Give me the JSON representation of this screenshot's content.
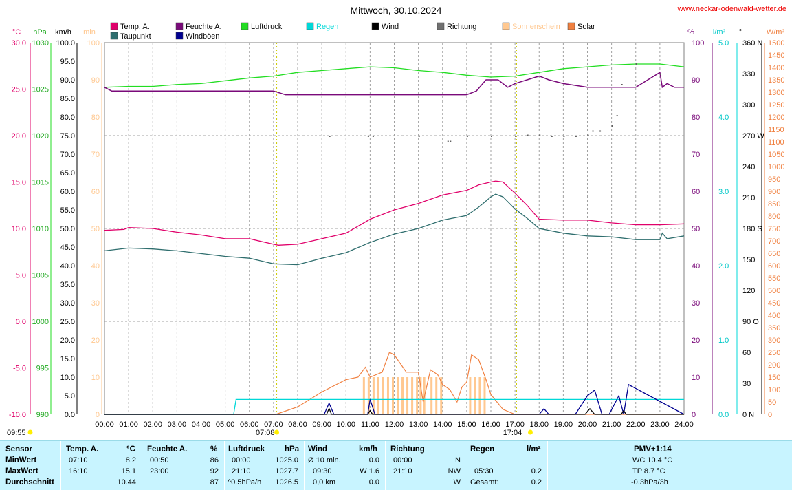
{
  "page": {
    "title": "Mittwoch, 30.10.2024",
    "site": "www.neckar-odenwald-wetter.de"
  },
  "legend": [
    {
      "label": "Temp. A.",
      "color": "#e0006a"
    },
    {
      "label": "Taupunkt",
      "color": "#2f6e6e"
    },
    {
      "label": "Feuchte A.",
      "color": "#7a0a7a"
    },
    {
      "label": "Windböen",
      "color": "#000090"
    },
    {
      "label": "Luftdruck",
      "color": "#22dd22"
    },
    {
      "label": "Regen",
      "color": "#00d8d8"
    },
    {
      "label": "Wind",
      "color": "#000000"
    },
    {
      "label": "Richtung",
      "color": "#707070"
    },
    {
      "label": "Sonnenschein",
      "color": "#ffc890"
    },
    {
      "label": "Solar",
      "color": "#f08040"
    }
  ],
  "units": {
    "temp": "°C",
    "pressure": "hPa",
    "wind": "km/h",
    "sun": "min",
    "humidity": "%",
    "rain": "l/m²",
    "direction": "°",
    "solar": "W/m²"
  },
  "chart_data": {
    "type": "line",
    "x_labels": [
      "00:00",
      "01:00",
      "02:00",
      "03:00",
      "04:00",
      "05:00",
      "06:00",
      "07:00",
      "08:00",
      "09:00",
      "10:00",
      "11:00",
      "12:00",
      "13:00",
      "14:00",
      "15:00",
      "16:00",
      "17:00",
      "18:00",
      "19:00",
      "20:00",
      "21:00",
      "22:00",
      "23:00",
      "24:00"
    ],
    "axes": {
      "temp": {
        "min": -10,
        "max": 30,
        "ticks": [
          "30.0",
          "25.0",
          "20.0",
          "15.0",
          "10.0",
          "5.0",
          "0.0",
          "-5.0",
          "-10.0"
        ]
      },
      "pressure": {
        "min": 990,
        "max": 1030,
        "ticks": [
          "1030",
          "1025",
          "1020",
          "1015",
          "1010",
          "1005",
          "1000",
          "995",
          "990"
        ]
      },
      "wind": {
        "min": 0,
        "max": 100,
        "ticks": [
          "100.0",
          "95.0",
          "90.0",
          "85.0",
          "80.0",
          "75.0",
          "70.0",
          "65.0",
          "60.0",
          "55.0",
          "50.0",
          "45.0",
          "40.0",
          "35.0",
          "30.0",
          "25.0",
          "20.0",
          "15.0",
          "10.0",
          "5.0",
          "0.0"
        ]
      },
      "sun": {
        "min": 0,
        "max": 100,
        "ticks": [
          "100",
          "90",
          "80",
          "70",
          "60",
          "50",
          "40",
          "30",
          "20",
          "10",
          "0"
        ]
      },
      "humidity": {
        "min": 0,
        "max": 100,
        "ticks": [
          "100",
          "90",
          "80",
          "70",
          "60",
          "50",
          "40",
          "30",
          "20",
          "10",
          "0"
        ]
      },
      "rain": {
        "min": 0,
        "max": 5,
        "ticks": [
          "5.0",
          "4.0",
          "3.0",
          "2.0",
          "1.0",
          "0.0"
        ]
      },
      "direction": {
        "min": 0,
        "max": 360,
        "ticks": [
          "360 N",
          "330",
          "300",
          "270 W",
          "240",
          "210",
          "180 S",
          "150",
          "120",
          "90 O",
          "60",
          "30",
          "0 N"
        ]
      },
      "solar": {
        "min": 0,
        "max": 1500,
        "ticks": [
          "1500",
          "1450",
          "1400",
          "1350",
          "1300",
          "1250",
          "1200",
          "1150",
          "1100",
          "1050",
          "1000",
          "950",
          "900",
          "850",
          "800",
          "750",
          "700",
          "650",
          "600",
          "550",
          "500",
          "450",
          "400",
          "350",
          "300",
          "250",
          "200",
          "150",
          "100",
          "50",
          "0"
        ]
      }
    },
    "series": [
      {
        "name": "Temp. A.",
        "axis": "temp",
        "x": [
          0,
          0.8,
          1,
          2,
          3,
          4,
          5,
          6,
          7,
          7.2,
          8,
          9,
          10,
          11,
          12,
          13,
          14,
          15,
          15.5,
          16,
          16.2,
          16.5,
          17,
          17.5,
          18,
          19,
          20,
          21,
          22,
          23,
          24
        ],
        "y": [
          9.8,
          9.9,
          10.1,
          10.0,
          9.6,
          9.3,
          8.9,
          8.9,
          8.3,
          8.2,
          8.3,
          8.9,
          9.5,
          11.0,
          12.0,
          12.7,
          13.6,
          14.1,
          14.7,
          15.0,
          15.1,
          15.0,
          13.8,
          12.5,
          11.0,
          10.9,
          10.9,
          10.6,
          10.4,
          10.4,
          10.5
        ]
      },
      {
        "name": "Taupunkt",
        "axis": "temp",
        "x": [
          0,
          1,
          2,
          3,
          4,
          5,
          6,
          7,
          8,
          9,
          10,
          11,
          12,
          13,
          14,
          15,
          15.5,
          16,
          16.2,
          16.5,
          17,
          17.5,
          18,
          19,
          20,
          21,
          22,
          23,
          23.1,
          23.3,
          24
        ],
        "y": [
          7.6,
          7.9,
          7.8,
          7.6,
          7.3,
          7.0,
          6.8,
          6.2,
          6.1,
          6.8,
          7.4,
          8.5,
          9.4,
          10.0,
          10.9,
          11.4,
          12.3,
          13.4,
          13.7,
          13.4,
          12.1,
          11.1,
          10.0,
          9.5,
          9.2,
          9.1,
          8.8,
          8.8,
          9.5,
          8.9,
          9.2
        ]
      },
      {
        "name": "Feuchte A.",
        "axis": "humidity",
        "x": [
          0,
          0.3,
          1,
          2,
          3,
          4,
          5,
          6,
          7,
          7.5,
          8,
          9,
          10,
          11,
          12,
          13,
          14,
          15,
          15.4,
          15.8,
          16.3,
          16.7,
          17,
          17.5,
          18,
          18.4,
          19,
          20,
          21,
          22,
          23,
          23.1,
          23.3,
          23.6,
          24
        ],
        "y": [
          88,
          87,
          87,
          87,
          87,
          87,
          87,
          87,
          87,
          86,
          86,
          86,
          86,
          86,
          86,
          86,
          86,
          86,
          87,
          90,
          90,
          88,
          89,
          90,
          91,
          90,
          89,
          88,
          88,
          88,
          92,
          88,
          89,
          88,
          88
        ]
      },
      {
        "name": "Luftdruck",
        "axis": "pressure",
        "x": [
          0,
          1,
          2,
          3,
          4,
          5,
          6,
          7,
          8,
          9,
          10,
          11,
          12,
          13,
          14,
          15,
          16,
          17,
          18,
          19,
          20,
          21,
          22,
          23,
          24
        ],
        "y": [
          1025.2,
          1025.3,
          1025.3,
          1025.5,
          1025.6,
          1025.9,
          1026.2,
          1026.4,
          1026.8,
          1027.0,
          1027.2,
          1027.4,
          1027.3,
          1027.0,
          1026.8,
          1026.5,
          1026.3,
          1026.4,
          1026.8,
          1027.2,
          1027.4,
          1027.6,
          1027.7,
          1027.7,
          1027.4
        ]
      },
      {
        "name": "Windböen",
        "axis": "wind",
        "x": [
          0,
          9.1,
          9.3,
          9.5,
          10.9,
          11.0,
          11.2,
          18.0,
          18.2,
          18.4,
          19.5,
          20.0,
          20.3,
          20.6,
          20.9,
          21.3,
          21.5,
          21.7,
          24
        ],
        "y": [
          0,
          0,
          3,
          0,
          0,
          4,
          0,
          0,
          1.5,
          0,
          0,
          5,
          6.5,
          0,
          0,
          5,
          0,
          8,
          0
        ]
      },
      {
        "name": "Wind",
        "axis": "wind",
        "x": [
          0,
          9.2,
          9.3,
          9.4,
          10.9,
          11.0,
          11.1,
          19.9,
          20.1,
          20.3,
          21.4,
          21.5,
          21.6,
          24
        ],
        "y": [
          0,
          0,
          1.6,
          0,
          0,
          1,
          0,
          0,
          1.5,
          0,
          0,
          1,
          0,
          0
        ]
      },
      {
        "name": "Regen",
        "axis": "rain",
        "x": [
          0,
          5.35,
          5.45,
          24
        ],
        "y": [
          0,
          0,
          0.2,
          0.2
        ]
      },
      {
        "name": "Solar",
        "axis": "solar",
        "x": [
          0,
          7.1,
          8,
          9,
          10,
          10.5,
          10.8,
          11,
          11.5,
          11.8,
          12,
          12.5,
          13,
          13.2,
          13.5,
          13.8,
          14,
          14.3,
          14.6,
          14.8,
          15,
          15.2,
          15.5,
          15.8,
          16,
          16.5,
          17,
          24
        ],
        "y": [
          0,
          0,
          30,
          90,
          140,
          150,
          190,
          150,
          170,
          250,
          240,
          170,
          170,
          50,
          180,
          160,
          120,
          100,
          50,
          110,
          130,
          240,
          220,
          140,
          80,
          20,
          0,
          0
        ]
      },
      {
        "name": "Richtung",
        "axis": "direction",
        "x": [
          9.3,
          10.9,
          11.1,
          13.0,
          14.2,
          14.3,
          15,
          16,
          17,
          17.5,
          18,
          18.5,
          19,
          19.5,
          20,
          20.2,
          20.5,
          21,
          21.2,
          21.4,
          22,
          23
        ],
        "y": [
          270,
          270,
          270,
          270,
          265,
          265,
          270,
          270,
          270,
          271,
          271,
          270,
          270,
          270,
          271,
          275,
          275,
          280,
          290,
          320,
          340,
          330
        ]
      },
      {
        "name": "Sonnenschein",
        "axis": "sun",
        "x": [
          10.7,
          10.9,
          11.1,
          11.3,
          11.5,
          11.7,
          11.9,
          12.1,
          12.3,
          12.5,
          12.7,
          12.9,
          13.05,
          13.2,
          13.5,
          13.7,
          13.9,
          15.1,
          15.3,
          15.5,
          15.7
        ],
        "y": [
          10,
          10,
          10,
          10,
          10,
          10,
          10,
          10,
          10,
          10,
          10,
          10,
          10,
          10,
          10,
          10,
          10,
          10,
          10,
          10,
          10
        ]
      }
    ],
    "markers": {
      "sunrise": "07:08",
      "sunset": "17:04",
      "moon": "09:55"
    }
  },
  "table": {
    "headers": [
      "Sensor",
      "Temp. A.",
      "°C",
      "Feuchte A.",
      "%",
      "Luftdruck",
      "hPa",
      "Wind",
      "km/h",
      "Richtung",
      "Regen",
      "l/m²",
      "PMV+1:14"
    ],
    "rows": {
      "min": {
        "label": "MinWert",
        "temp_time": "07:10",
        "temp": "8.2",
        "hum_time": "00:50",
        "hum": "86",
        "press_time": "00:00",
        "press": "1025.0",
        "wind_time": "Ø 10 min.",
        "wind": "0.0",
        "dir_time": "00:00",
        "dir": "N",
        "rain_time": "",
        "rain": "",
        "extra": "WC 10.4 °C"
      },
      "max": {
        "label": "MaxWert",
        "temp_time": "16:10",
        "temp": "15.1",
        "hum_time": "23:00",
        "hum": "92",
        "press_time": "21:10",
        "press": "1027.7",
        "wind_time": "09:30",
        "wind": "W 1.6",
        "dir_time": "21:10",
        "dir": "NW",
        "rain_time": "05:30",
        "rain": "0.2",
        "extra": "TP 8.7 °C"
      },
      "avg": {
        "label": "Durchschnitt",
        "temp_time": "",
        "temp": "10.44",
        "hum_time": "",
        "hum": "87",
        "press_time": "^0.5hPa/h",
        "press": "1026.5",
        "wind_time": "0,0 km",
        "wind": "0.0",
        "dir_time": "",
        "dir": "W",
        "rain_time": "Gesamt:",
        "rain": "0.2",
        "extra": "-0.3hPa/3h"
      }
    }
  }
}
